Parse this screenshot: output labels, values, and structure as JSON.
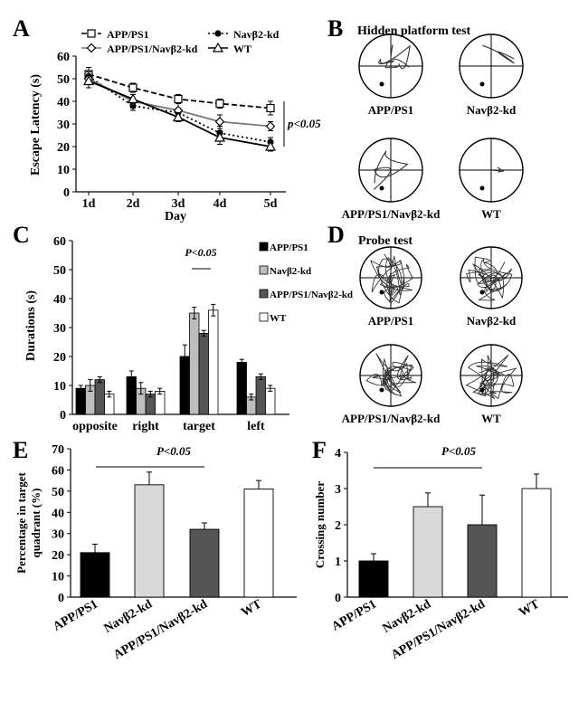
{
  "figure": {
    "colors": {
      "black": "#000000",
      "light_gray": "#d9d9d9",
      "dark_gray": "#555555",
      "white": "#ffffff",
      "gray_bar": "#bdbdbd"
    },
    "panels": {
      "A": {
        "letter": "A",
        "ylabel": "Escape Latency (s)",
        "xlabel": "Day",
        "sig": "p<0.05"
      },
      "B": {
        "letter": "B",
        "title": "Hidden platform test",
        "labels": [
          "APP/PS1",
          "Navβ2-kd",
          "APP/PS1/Navβ2-kd",
          "WT"
        ]
      },
      "C": {
        "letter": "C",
        "ylabel": "Durations (s)",
        "sig": "P<0.05"
      },
      "D": {
        "letter": "D",
        "title": "Probe test",
        "labels": [
          "APP/PS1",
          "Navβ2-kd",
          "APP/PS1/Navβ2-kd",
          "WT"
        ]
      },
      "E": {
        "letter": "E",
        "ylabel_line1": "Percentage in target",
        "ylabel_line2": "quadrant (%)",
        "sig": "P<0.05"
      },
      "F": {
        "letter": "F",
        "ylabel": "Crossing number",
        "sig": "P<0.05"
      }
    }
  },
  "chart_data": [
    {
      "panel": "A",
      "type": "line",
      "title": "",
      "xlabel": "Day",
      "ylabel": "Escape Latency (s)",
      "categories": [
        "1d",
        "2d",
        "3d",
        "4d",
        "5d"
      ],
      "ylim": [
        0,
        60
      ],
      "yticks": [
        0,
        10,
        20,
        30,
        40,
        50,
        60
      ],
      "series": [
        {
          "name": "APP/PS1",
          "values": [
            52,
            46,
            41,
            39,
            37
          ],
          "errors": [
            3,
            2,
            2,
            2,
            3
          ],
          "line": "dashed",
          "marker": "square"
        },
        {
          "name": "Navβ2-kd",
          "values": [
            51,
            38,
            35,
            26,
            22
          ],
          "errors": [
            2,
            2,
            2,
            3,
            2
          ],
          "line": "dotted",
          "marker": "circle"
        },
        {
          "name": "APP/PS1/Navβ2-kd",
          "values": [
            50,
            40,
            36,
            31,
            29
          ],
          "errors": [
            2,
            3,
            3,
            3,
            2
          ],
          "line": "solid-gray",
          "marker": "diamond"
        },
        {
          "name": "WT",
          "values": [
            49,
            41,
            33,
            24,
            20
          ],
          "errors": [
            3,
            2,
            2,
            3,
            2
          ],
          "line": "solid",
          "marker": "triangle"
        }
      ],
      "annotation": "p<0.05"
    },
    {
      "panel": "C",
      "type": "bar",
      "title": "",
      "xlabel": "",
      "ylabel": "Durations (s)",
      "categories": [
        "opposite",
        "right",
        "target",
        "left"
      ],
      "ylim": [
        0,
        60
      ],
      "yticks": [
        0,
        10,
        20,
        30,
        40,
        50,
        60
      ],
      "series": [
        {
          "name": "APP/PS1",
          "values": [
            9,
            13,
            20,
            18
          ],
          "errors": [
            1,
            2,
            4,
            1
          ],
          "color": "#000000"
        },
        {
          "name": "Navβ2-kd",
          "values": [
            10,
            9,
            35,
            6
          ],
          "errors": [
            2,
            2,
            2,
            1
          ],
          "color": "#bdbdbd"
        },
        {
          "name": "APP/PS1/Navβ2-kd",
          "values": [
            12,
            7,
            28,
            13
          ],
          "errors": [
            1,
            1,
            1,
            1
          ],
          "color": "#555555"
        },
        {
          "name": "WT",
          "values": [
            7,
            8,
            36,
            9
          ],
          "errors": [
            1,
            1,
            2,
            1
          ],
          "color": "#ffffff"
        }
      ],
      "annotation": "P<0.05",
      "legend": "right"
    },
    {
      "panel": "E",
      "type": "bar",
      "title": "",
      "xlabel": "",
      "ylabel": "Percentage in target quadrant (%)",
      "categories": [
        "APP/PS1",
        "Navβ2-kd",
        "APP/PS1/Navβ2-kd",
        "WT"
      ],
      "values": [
        21,
        53,
        32,
        51
      ],
      "errors": [
        4,
        6,
        3,
        4
      ],
      "colors": [
        "#000000",
        "#d9d9d9",
        "#555555",
        "#ffffff"
      ],
      "ylim": [
        0,
        70
      ],
      "yticks": [
        0,
        10,
        20,
        30,
        40,
        50,
        60,
        70
      ],
      "annotation": "P<0.05"
    },
    {
      "panel": "F",
      "type": "bar",
      "title": "",
      "xlabel": "",
      "ylabel": "Crossing number",
      "categories": [
        "APP/PS1",
        "Navβ2-kd",
        "APP/PS1/Navβ2-kd",
        "WT"
      ],
      "values": [
        1,
        2.5,
        2,
        3
      ],
      "errors": [
        0.2,
        0.38,
        0.82,
        0.4
      ],
      "colors": [
        "#000000",
        "#d9d9d9",
        "#555555",
        "#ffffff"
      ],
      "ylim": [
        0,
        4
      ],
      "yticks": [
        0,
        1,
        2,
        3,
        4
      ],
      "annotation": "P<0.05"
    }
  ]
}
